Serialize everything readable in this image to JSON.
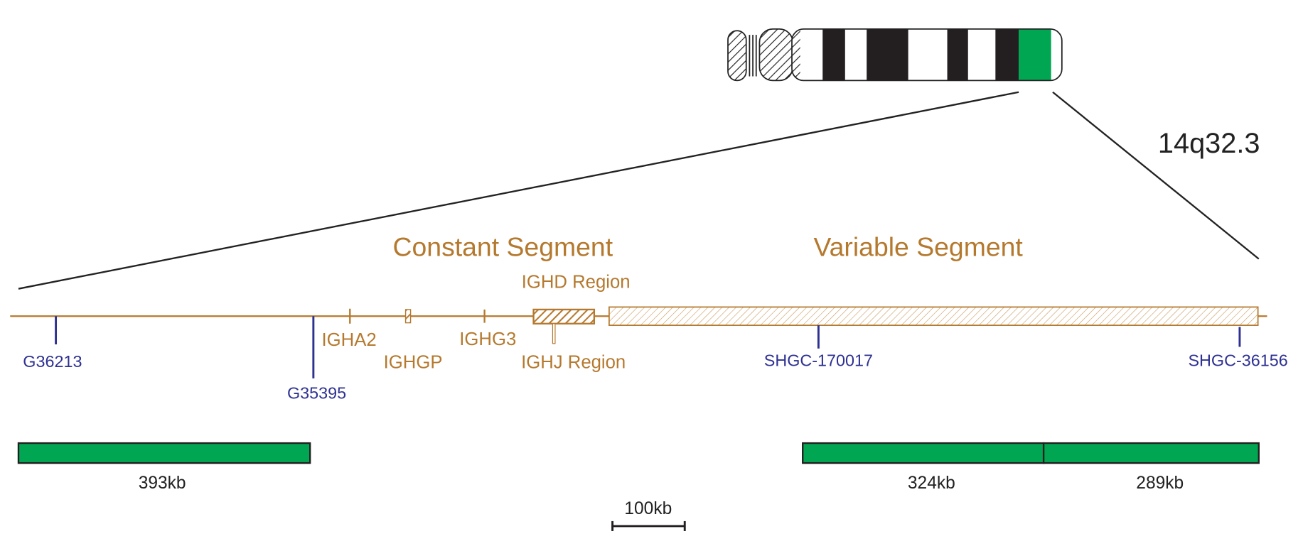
{
  "chromosome_band": "14q32.3",
  "segments": [
    "Constant Segment",
    "Variable Segment"
  ],
  "regions": [
    "IGHD Region",
    "IGHJ Region"
  ],
  "genes": [
    "IGHA2",
    "IGHGP",
    "IGHG3"
  ],
  "markers": [
    "G36213",
    "G35395",
    "SHGC-170017",
    "SHGC-36156"
  ],
  "contigs": [
    "393kb",
    "324kb",
    "289kb"
  ],
  "scale_bar": "100kb"
}
